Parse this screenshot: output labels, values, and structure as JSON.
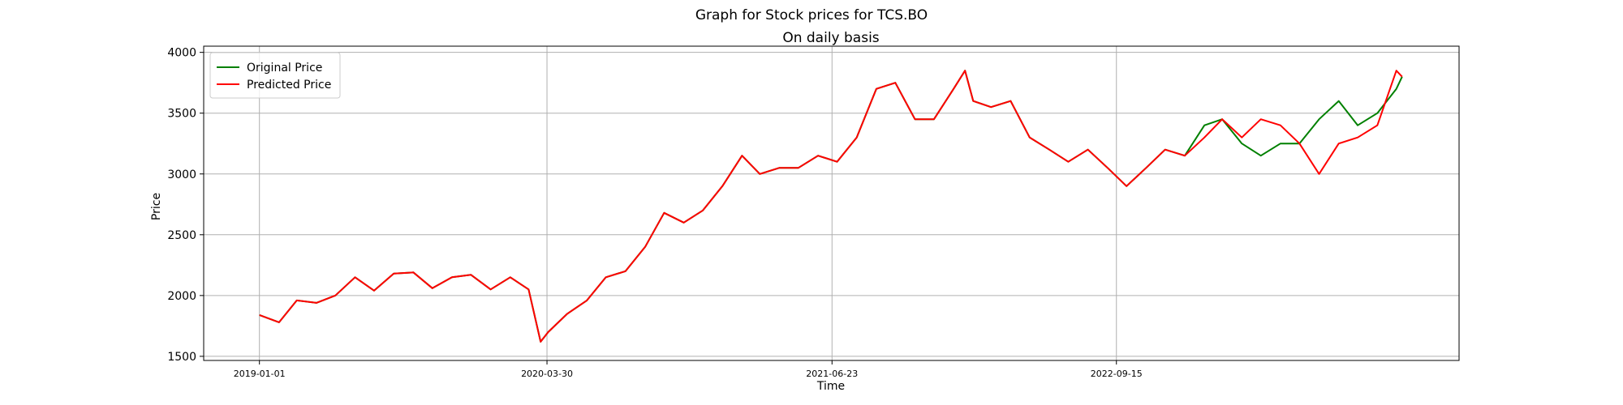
{
  "chart_data": {
    "type": "line",
    "title": "Graph for Stock prices for TCS.BO",
    "subtitle": "On daily basis",
    "x_label": "Time",
    "y_label": "Price",
    "x": [
      "2019-01-01",
      "2019-02-01",
      "2019-03-01",
      "2019-04-01",
      "2019-05-01",
      "2019-06-01",
      "2019-07-01",
      "2019-08-01",
      "2019-09-01",
      "2019-10-01",
      "2019-11-01",
      "2019-12-01",
      "2020-01-01",
      "2020-02-01",
      "2020-03-01",
      "2020-03-20",
      "2020-04-01",
      "2020-05-01",
      "2020-06-01",
      "2020-07-01",
      "2020-08-01",
      "2020-09-01",
      "2020-10-01",
      "2020-11-01",
      "2020-12-01",
      "2021-01-01",
      "2021-02-01",
      "2021-03-01",
      "2021-04-01",
      "2021-05-01",
      "2021-06-01",
      "2021-07-01",
      "2021-08-01",
      "2021-09-01",
      "2021-10-01",
      "2021-11-01",
      "2021-12-01",
      "2022-01-01",
      "2022-01-19",
      "2022-02-01",
      "2022-03-01",
      "2022-04-01",
      "2022-05-01",
      "2022-06-01",
      "2022-07-01",
      "2022-08-01",
      "2022-09-01",
      "2022-10-01",
      "2022-11-01",
      "2022-12-01",
      "2023-01-01",
      "2023-02-01",
      "2023-03-01",
      "2023-04-01",
      "2023-05-01",
      "2023-06-01",
      "2023-07-01",
      "2023-08-01",
      "2023-09-01",
      "2023-10-01",
      "2023-11-01",
      "2023-12-01",
      "2023-12-10"
    ],
    "series": [
      {
        "name": "Original Price",
        "color": "#008000",
        "values": [
          1840,
          1780,
          1960,
          1940,
          2000,
          2150,
          2040,
          2180,
          2190,
          2060,
          2150,
          2170,
          2050,
          2150,
          2050,
          1620,
          1700,
          1850,
          1960,
          2150,
          2200,
          2400,
          2680,
          2600,
          2700,
          2900,
          3150,
          3000,
          3050,
          3050,
          3150,
          3100,
          3300,
          3700,
          3750,
          3450,
          3450,
          3700,
          3850,
          3600,
          3550,
          3600,
          3300,
          3200,
          3100,
          3200,
          3050,
          2900,
          3050,
          3200,
          3150,
          3400,
          3450,
          3250,
          3150,
          3250,
          3250,
          3450,
          3600,
          3400,
          3500,
          3700,
          3800
        ]
      },
      {
        "name": "Predicted Price",
        "color": "#ff0000",
        "values": [
          1840,
          1780,
          1960,
          1940,
          2000,
          2150,
          2040,
          2180,
          2190,
          2060,
          2150,
          2170,
          2050,
          2150,
          2050,
          1620,
          1700,
          1850,
          1960,
          2150,
          2200,
          2400,
          2680,
          2600,
          2700,
          2900,
          3150,
          3000,
          3050,
          3050,
          3150,
          3100,
          3300,
          3700,
          3750,
          3450,
          3450,
          3700,
          3850,
          3600,
          3550,
          3600,
          3300,
          3200,
          3100,
          3200,
          3050,
          2900,
          3050,
          3200,
          3150,
          3300,
          3450,
          3300,
          3450,
          3400,
          3250,
          3000,
          3250,
          3300,
          3400,
          3850,
          3800
        ]
      }
    ],
    "xlim": [
      "2018-10-05",
      "2024-03-09"
    ],
    "xticks": [
      "2019-01-01",
      "2020-03-30",
      "2021-06-23",
      "2022-09-15"
    ],
    "ylim": [
      1466,
      4051
    ],
    "yticks": [
      1500,
      2000,
      2500,
      3000,
      3500,
      4000
    ],
    "grid": true,
    "legend": "upper-left"
  }
}
